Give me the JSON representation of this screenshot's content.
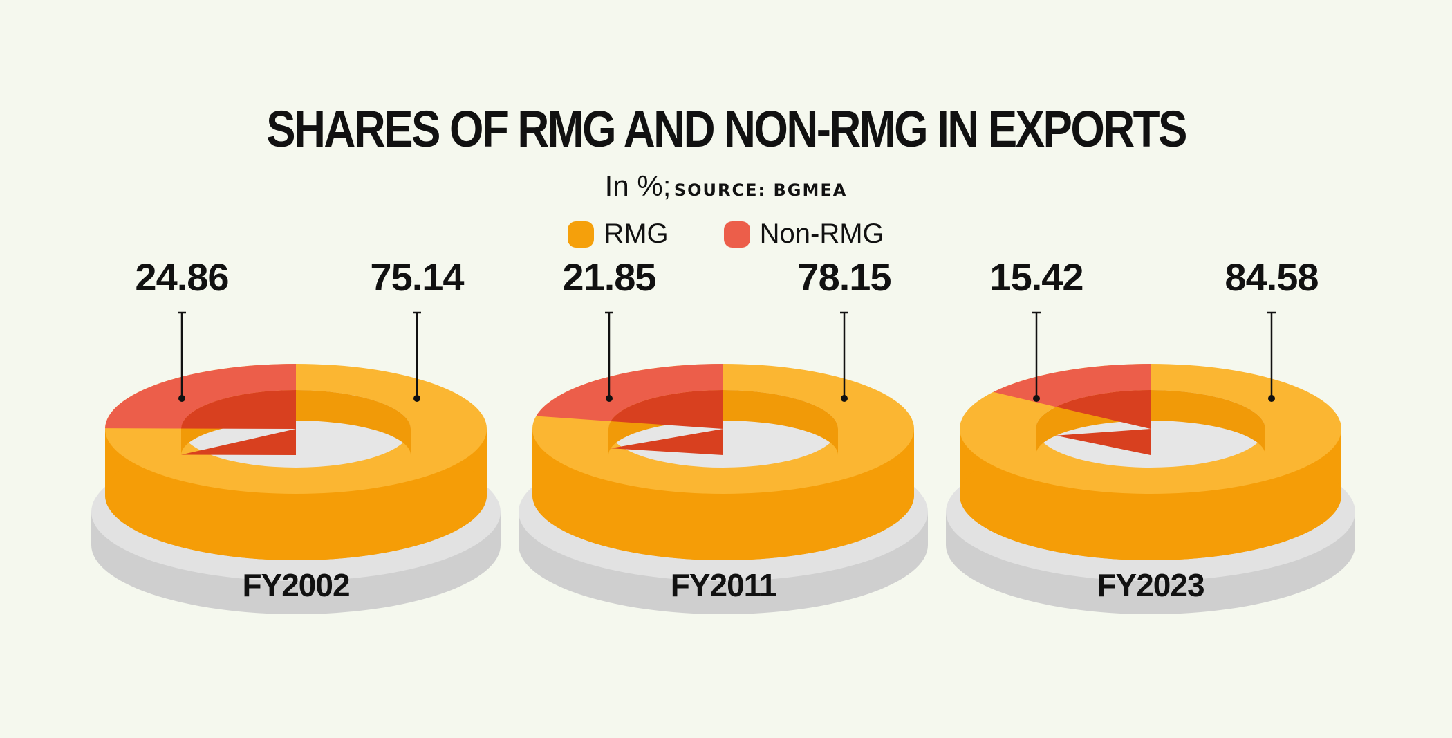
{
  "title": "SHARES OF RMG AND NON-RMG IN EXPORTS",
  "subtitle_unit": "In %;",
  "subtitle_source": "SOURCE: BGMEA",
  "colors": {
    "rmg_top": "#fbb632",
    "rmg_side": "#f59d07",
    "rmg_inner": "#f19a08",
    "nonrmg_top": "#ec5e4a",
    "nonrmg_inner": "#d8401f",
    "base_top": "#e2e2e2",
    "base_side": "#cfcfcf",
    "background": "#f5f8ee"
  },
  "chart_data": {
    "type": "pie",
    "unit": "%",
    "legend": [
      {
        "name": "RMG",
        "color": "#f5a00b"
      },
      {
        "name": "Non-RMG",
        "color": "#ec5e4a"
      }
    ],
    "legend_placement": "top-center",
    "charts": [
      {
        "label": "FY2002",
        "rmg": 75.14,
        "non_rmg": 24.86
      },
      {
        "label": "FY2011",
        "rmg": 78.15,
        "non_rmg": 21.85
      },
      {
        "label": "FY2023",
        "rmg": 84.58,
        "non_rmg": 15.42
      }
    ]
  }
}
